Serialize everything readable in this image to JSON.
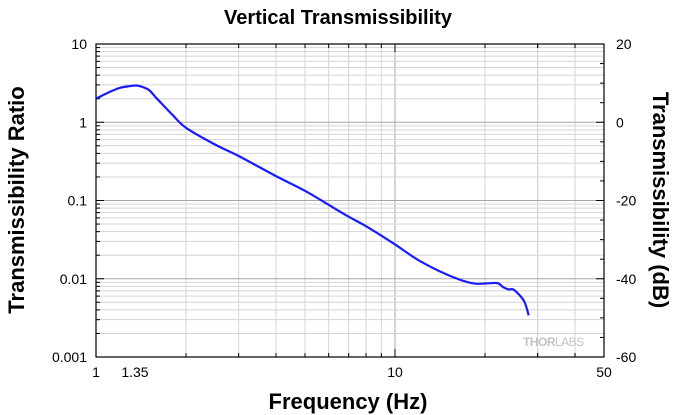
{
  "chart_data": {
    "type": "line",
    "title": "Vertical Transmissibility",
    "xlabel": "Frequency (Hz)",
    "ylabel": "Transmissibility Ratio",
    "y2label": "Transmissibility (dB)",
    "xscale": "log",
    "yscale": "log",
    "xlim": [
      1,
      50
    ],
    "ylim": [
      0.001,
      10
    ],
    "y2lim": [
      -60,
      20
    ],
    "x_tick_labels": [
      "1",
      "1.35",
      "10",
      "50"
    ],
    "x_tick_values": [
      1,
      1.35,
      10,
      50
    ],
    "y_tick_labels": [
      "10",
      "1",
      "0.1",
      "0.01",
      "0.001"
    ],
    "y_tick_values": [
      10,
      1,
      0.1,
      0.01,
      0.001
    ],
    "y2_tick_labels": [
      "20",
      "0",
      "-20",
      "-40",
      "-60"
    ],
    "y2_tick_values": [
      20,
      0,
      -20,
      -40,
      -60
    ],
    "grid": true,
    "line_color": "#1a1aff",
    "watermark": {
      "thor": "THOR",
      "labs": "LABS"
    },
    "series": [
      {
        "name": "Vertical Transmissibility",
        "x": [
          1,
          1.1,
          1.2,
          1.3,
          1.35,
          1.4,
          1.5,
          1.6,
          1.8,
          2,
          2.5,
          3,
          4,
          5,
          6,
          7,
          8,
          10,
          12,
          15,
          18,
          20,
          22,
          23,
          24,
          25,
          27,
          28
        ],
        "y": [
          2.0,
          2.4,
          2.75,
          2.9,
          2.95,
          2.9,
          2.6,
          2.0,
          1.25,
          0.85,
          0.52,
          0.37,
          0.205,
          0.133,
          0.088,
          0.062,
          0.047,
          0.0275,
          0.0172,
          0.0112,
          0.0088,
          0.0087,
          0.0088,
          0.0078,
          0.0073,
          0.0072,
          0.0052,
          0.0034
        ]
      }
    ]
  }
}
